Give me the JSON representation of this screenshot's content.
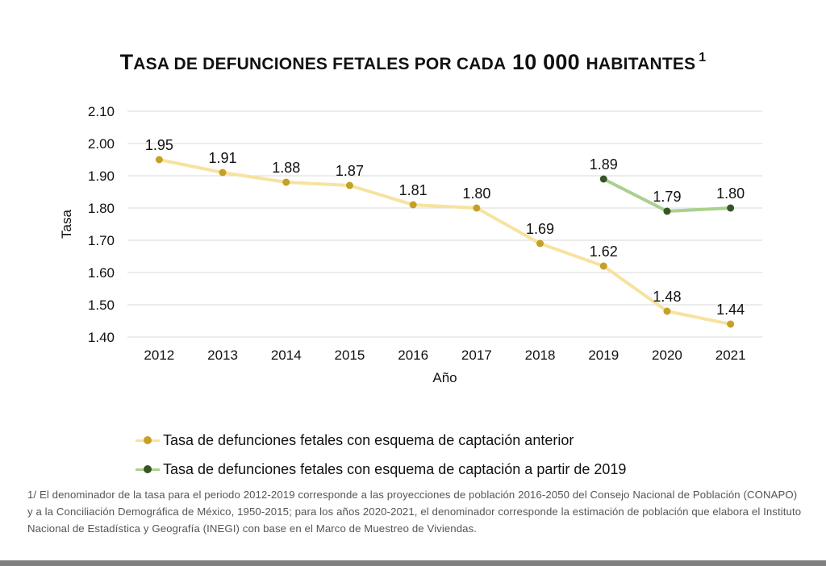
{
  "title": {
    "t1_cap": "T",
    "t1_rest": "ASA DE DEFUNCIONES FETALES POR CADA",
    "number": "10 000",
    "t2_rest": "HABITANTES",
    "superscript": "1"
  },
  "chart_data": {
    "type": "line",
    "title": "TASA DE DEFUNCIONES FETALES POR CADA 10 000 HABITANTES 1",
    "xlabel": "Año",
    "ylabel": "Tasa",
    "categories": [
      "2012",
      "2013",
      "2014",
      "2015",
      "2016",
      "2017",
      "2018",
      "2019",
      "2020",
      "2021"
    ],
    "ylim": [
      1.4,
      2.1
    ],
    "yticks": [
      "1.40",
      "1.50",
      "1.60",
      "1.70",
      "1.80",
      "1.90",
      "2.00",
      "2.10"
    ],
    "grid": true,
    "series": [
      {
        "name": "Tasa de defunciones fetales con esquema de captación anterior",
        "line_color": "#f7e29f",
        "marker_color": "#c5a028",
        "values": [
          1.95,
          1.91,
          1.88,
          1.87,
          1.81,
          1.8,
          1.69,
          1.62,
          1.48,
          1.44
        ],
        "labels": [
          "1.95",
          "1.91",
          "1.88",
          "1.87",
          "1.81",
          "1.80",
          "1.69",
          "1.62",
          "1.48",
          "1.44"
        ]
      },
      {
        "name": "Tasa de defunciones fetales con esquema de captación a partir de 2019",
        "line_color": "#a9d18e",
        "marker_color": "#375623",
        "values": [
          null,
          null,
          null,
          null,
          null,
          null,
          null,
          1.89,
          1.79,
          1.8
        ],
        "labels": [
          null,
          null,
          null,
          null,
          null,
          null,
          null,
          "1.89",
          "1.79",
          "1.80"
        ]
      }
    ]
  },
  "legend": [
    {
      "label": "Tasa de defunciones fetales con esquema de captación anterior",
      "line_color": "#f7e29f",
      "marker_color": "#c5a028"
    },
    {
      "label": "Tasa de defunciones fetales con esquema de captación a partir de 2019",
      "line_color": "#a9d18e",
      "marker_color": "#375623"
    }
  ],
  "footnote": "1/ El denominador de la tasa para el periodo 2012-2019 corresponde a las proyecciones de población 2016-2050 del Consejo Nacional de Población (CONAPO) y a la Conciliación Demográfica de México, 1950-2015; para los años 2020-2021, el denominador corresponde la estimación de población que elabora el Instituto Nacional de Estadística y Geografía (INEGI) con base en el Marco de Muestreo de Viviendas."
}
